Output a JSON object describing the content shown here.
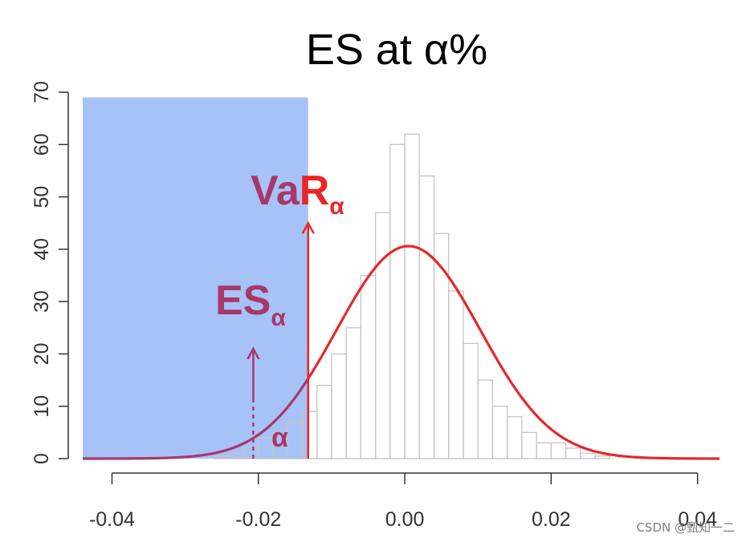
{
  "chart_data": {
    "type": "bar",
    "title": "ES at α%",
    "xlabel": "",
    "ylabel": "",
    "xlim": [
      -0.044,
      0.043
    ],
    "ylim": [
      0,
      70
    ],
    "xticks": [
      -0.04,
      -0.02,
      0.0,
      0.02,
      0.04
    ],
    "xtick_labels": [
      "-0.04",
      "-0.02",
      "0.00",
      "0.02",
      "0.04"
    ],
    "yticks": [
      0,
      10,
      20,
      30,
      40,
      50,
      60,
      70
    ],
    "ytick_labels": [
      "0",
      "10",
      "20",
      "30",
      "40",
      "50",
      "60",
      "70"
    ],
    "grid": false,
    "legend": "none",
    "histogram": {
      "bin_width": 0.002,
      "bin_starts": [
        -0.026,
        -0.024,
        -0.022,
        -0.02,
        -0.018,
        -0.016,
        -0.014,
        -0.012,
        -0.01,
        -0.008,
        -0.006,
        -0.004,
        -0.002,
        0.0,
        0.002,
        0.004,
        0.006,
        0.008,
        0.01,
        0.012,
        0.014,
        0.016,
        0.018,
        0.02,
        0.022,
        0.024,
        0.026
      ],
      "counts": [
        0.5,
        1,
        2,
        4,
        5,
        7,
        9,
        14,
        20,
        25,
        35,
        47,
        60,
        62,
        54,
        43,
        32,
        22,
        15,
        10,
        8,
        5,
        3,
        3,
        2,
        1,
        0.5
      ]
    },
    "normal_curve": {
      "mean": 0.0005,
      "sd": 0.0098,
      "peak": 40.6,
      "color": "#e8262a"
    },
    "shaded_region": {
      "x_from": -0.044,
      "x_to": -0.0132,
      "y_top": 69,
      "color": "#a7c2f7"
    },
    "var": {
      "x": -0.0132,
      "arrow_top": 45,
      "label_main": "VaR",
      "label_sub": "α"
    },
    "es": {
      "x": -0.0207,
      "arrow_top": 21,
      "label_main": "ES",
      "label_sub": "α"
    },
    "alpha_label": "α",
    "colors": {
      "accent_red": "#e8262a",
      "es_purple": "#a8386a",
      "bar_stroke": "#c4c4c4"
    }
  },
  "watermark": "CSDN @甄知一二"
}
